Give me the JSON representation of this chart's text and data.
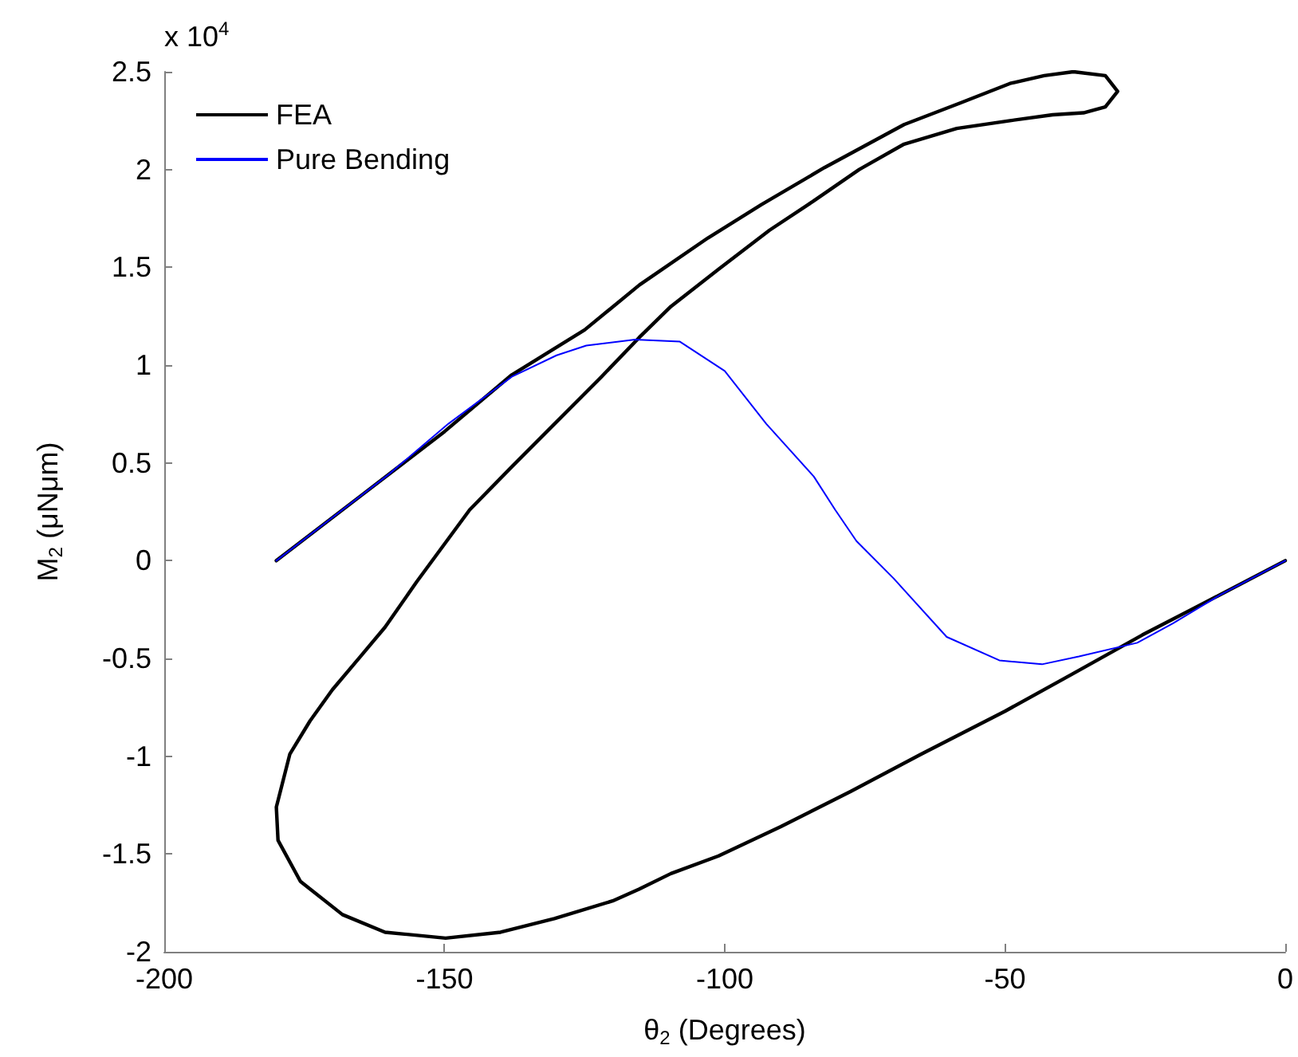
{
  "chart_data": {
    "type": "line",
    "xlabel": "θ$_{2}$ (Degrees)",
    "ylabel": "M$_{2}$ (μNμm)",
    "annotations": [
      "x 10$^{4}$"
    ],
    "xlim": [
      -200,
      0
    ],
    "xticks": [
      -200,
      -150,
      -100,
      -50,
      0
    ],
    "ylim": [
      -2,
      2.5
    ],
    "yticks": [
      -2,
      -1.5,
      -1,
      -0.5,
      0,
      0.5,
      1,
      1.5,
      2,
      2.5
    ],
    "grid": false,
    "legend": "top left",
    "marker": "none",
    "series": [
      {
        "name": "FEA",
        "color": "#000000",
        "x": [
          -180,
          -165,
          -150,
          -138,
          -125,
          -115.2,
          -103,
          -93.5,
          -82.2,
          -68,
          -58,
          -49.1,
          -43,
          -37.8,
          -32.1,
          -29.9,
          -32.1,
          -36,
          -41.5,
          -49.1,
          -58.6,
          -68,
          -76,
          -84.1,
          -92,
          -101.1,
          -109.6,
          -115.3,
          -122,
          -130,
          -138,
          -145.5,
          -155,
          -160.6,
          -165,
          -170,
          -174,
          -177.6,
          -180,
          -179.7,
          -175.7,
          -168.2,
          -160.6,
          -149.8,
          -140,
          -130.4,
          -120,
          -115.3,
          -109.6,
          -101.1,
          -90,
          -77.5,
          -65,
          -50,
          -38,
          -25.5,
          -12,
          0
        ],
        "values": [
          0,
          0.33,
          0.66,
          0.95,
          1.18,
          1.41,
          1.65,
          1.82,
          2.01,
          2.23,
          2.34,
          2.44,
          2.48,
          2.5,
          2.48,
          2.4,
          2.32,
          2.29,
          2.28,
          2.25,
          2.21,
          2.13,
          2.0,
          1.84,
          1.69,
          1.49,
          1.3,
          1.14,
          0.94,
          0.71,
          0.48,
          0.26,
          -0.11,
          -0.34,
          -0.49,
          -0.66,
          -0.82,
          -0.99,
          -1.26,
          -1.43,
          -1.64,
          -1.81,
          -1.9,
          -1.93,
          -1.9,
          -1.83,
          -1.74,
          -1.68,
          -1.6,
          -1.51,
          -1.36,
          -1.18,
          -0.99,
          -0.77,
          -0.58,
          -0.38,
          -0.18,
          0
        ]
      },
      {
        "name": "Pure Bending",
        "color": "#0000ff",
        "x": [
          -180,
          -168.2,
          -160,
          -149.3,
          -138,
          -130,
          -124.7,
          -116,
          -108,
          -100,
          -92.6,
          -84.1,
          -80.3,
          -76.5,
          -69.9,
          -60.4,
          -51,
          -43.4,
          -36.8,
          -26.4,
          -20,
          -11.3,
          0
        ],
        "values": [
          0,
          0.26,
          0.44,
          0.7,
          0.94,
          1.05,
          1.1,
          1.13,
          1.12,
          0.97,
          0.7,
          0.43,
          0.26,
          0.1,
          -0.09,
          -0.39,
          -0.51,
          -0.53,
          -0.49,
          -0.42,
          -0.32,
          -0.17,
          0
        ]
      }
    ]
  }
}
